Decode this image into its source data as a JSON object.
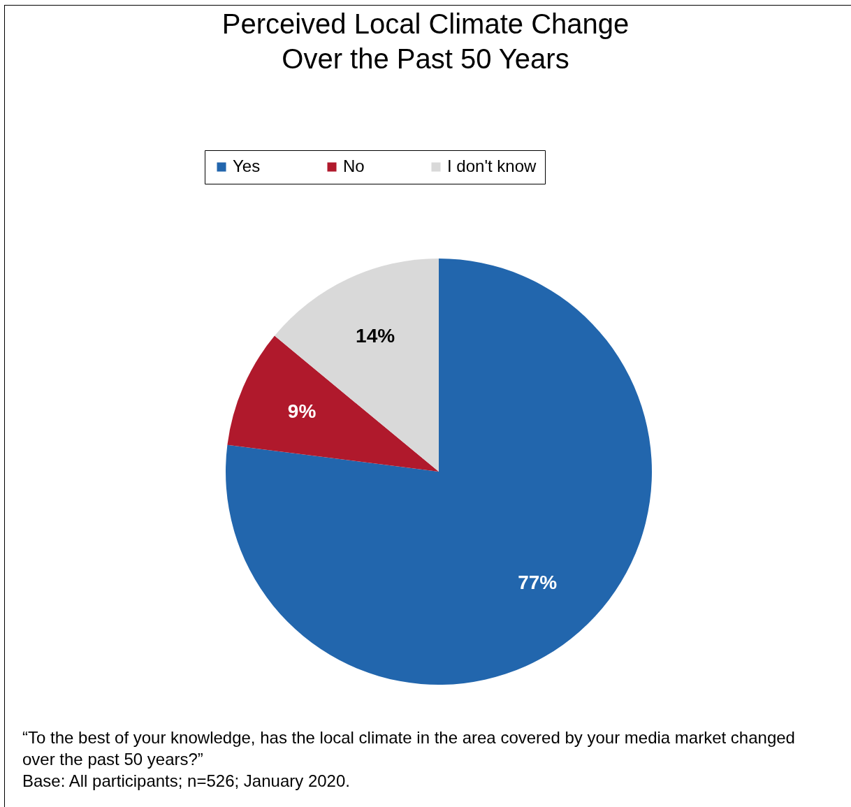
{
  "chart_data": {
    "type": "pie",
    "title": "Perceived Local Climate Change\nOver the Past 50 Years",
    "categories": [
      "Yes",
      "No",
      "I don't know"
    ],
    "values": [
      77,
      9,
      14
    ],
    "colors": [
      "#2266ad",
      "#b0192c",
      "#d9d9d9"
    ],
    "value_labels": [
      "77%",
      "9%",
      "14%"
    ],
    "legend": "top",
    "annotations": [
      "“To the best of your knowledge, has the local climate in the area covered by your media market changed over the past 50 years?”",
      "Base: All participants; n=526; January 2020."
    ]
  }
}
